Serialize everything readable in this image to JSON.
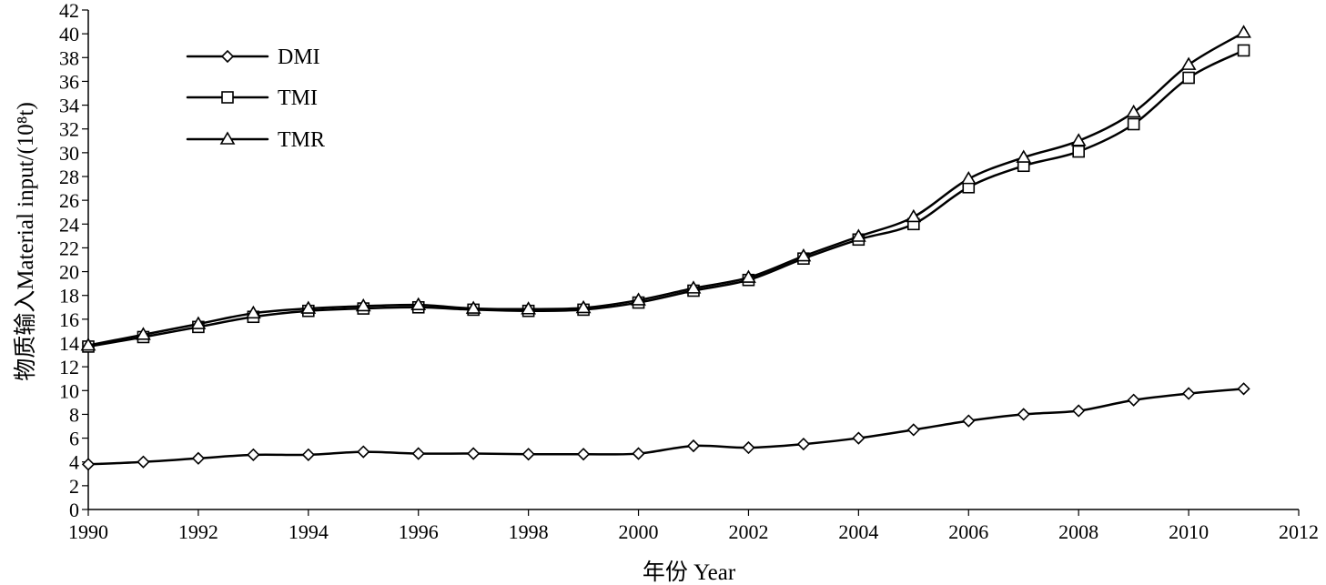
{
  "chart_data": {
    "type": "line",
    "title": "",
    "xlabel": "年份 Year",
    "ylabel": "物质输入Material input/(10⁸t)",
    "xlim": [
      1990,
      2012
    ],
    "ylim": [
      0,
      42
    ],
    "xticks": [
      1990,
      1992,
      1994,
      1996,
      1998,
      2000,
      2002,
      2004,
      2006,
      2008,
      2010,
      2012
    ],
    "yticks": [
      0,
      2,
      4,
      6,
      8,
      10,
      12,
      14,
      16,
      18,
      20,
      22,
      24,
      26,
      28,
      30,
      32,
      34,
      36,
      38,
      40,
      42
    ],
    "grid": false,
    "legend_position": "top-left",
    "x": [
      1990,
      1991,
      1992,
      1993,
      1994,
      1995,
      1996,
      1997,
      1998,
      1999,
      2000,
      2001,
      2002,
      2003,
      2004,
      2005,
      2006,
      2007,
      2008,
      2009,
      2010,
      2011
    ],
    "series": [
      {
        "name": "DMI",
        "marker": "diamond",
        "values": [
          3.8,
          4.0,
          4.3,
          4.6,
          4.6,
          4.85,
          4.7,
          4.7,
          4.65,
          4.65,
          4.7,
          5.35,
          5.2,
          5.5,
          6.0,
          6.7,
          7.45,
          8.0,
          8.3,
          9.2,
          9.75,
          10.15
        ]
      },
      {
        "name": "TMI",
        "marker": "square",
        "values": [
          13.7,
          14.5,
          15.35,
          16.2,
          16.7,
          16.9,
          17.0,
          16.8,
          16.7,
          16.8,
          17.4,
          18.4,
          19.3,
          21.1,
          22.7,
          24.0,
          27.1,
          28.9,
          30.1,
          32.4,
          36.3,
          38.6
        ]
      },
      {
        "name": "TMR",
        "marker": "triangle",
        "values": [
          13.8,
          14.7,
          15.6,
          16.5,
          16.9,
          17.1,
          17.2,
          16.9,
          16.85,
          16.95,
          17.6,
          18.6,
          19.5,
          21.3,
          22.95,
          24.6,
          27.8,
          29.6,
          31.0,
          33.4,
          37.4,
          40.1
        ]
      }
    ]
  }
}
